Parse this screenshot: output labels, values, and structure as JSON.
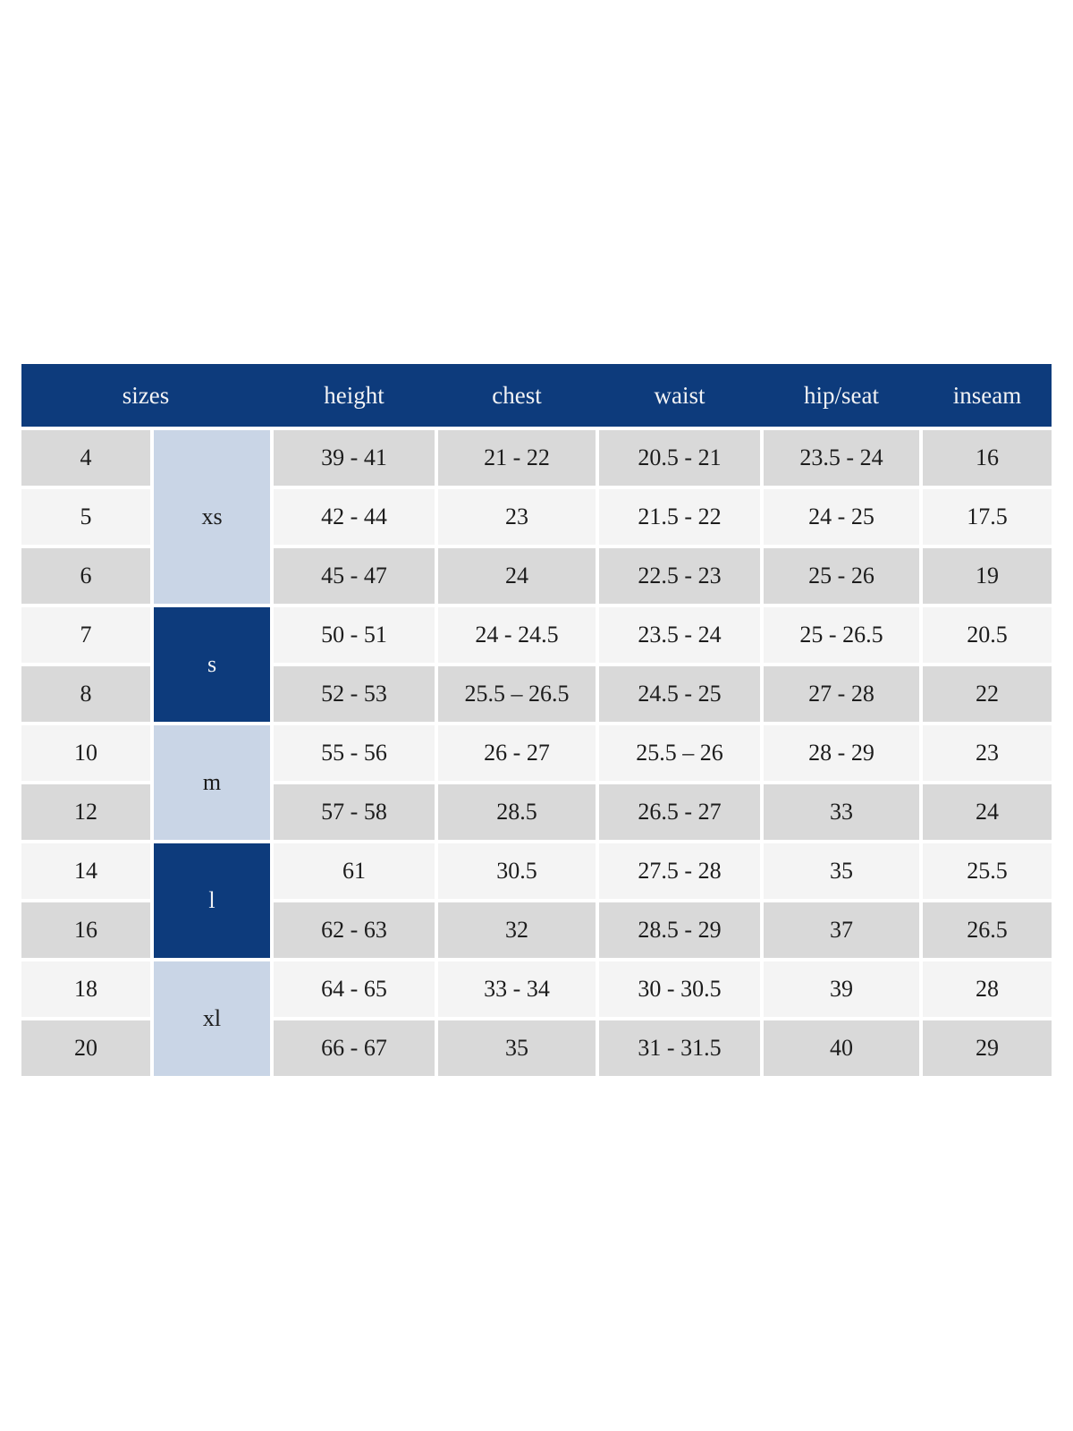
{
  "theme": {
    "header_bg": "#0d3b7c",
    "header_text": "#f2f3f5",
    "row_gray": "#d9d9d9",
    "row_light": "#f4f4f4",
    "group_blue_light": "#c9d5e6",
    "group_blue_dark": "#0d3b7c",
    "cell_text": "#1c1c1c",
    "page_bg": "#ffffff"
  },
  "table": {
    "header": {
      "columns": [
        "sizes",
        "height",
        "chest",
        "waist",
        "hip/seat",
        "inseam"
      ]
    },
    "groups": [
      {
        "label": "xs",
        "style": "light",
        "rows": 3
      },
      {
        "label": "s",
        "style": "dark",
        "rows": 2
      },
      {
        "label": "m",
        "style": "light",
        "rows": 2
      },
      {
        "label": "l",
        "style": "dark",
        "rows": 2
      },
      {
        "label": "xl",
        "style": "light",
        "rows": 2
      }
    ],
    "rows": [
      {
        "size": "4",
        "height": "39 - 41",
        "chest": "21 - 22",
        "waist": "20.5 - 21",
        "hip_seat": "23.5 - 24",
        "inseam": "16"
      },
      {
        "size": "5",
        "height": "42 - 44",
        "chest": "23",
        "waist": "21.5 - 22",
        "hip_seat": "24 - 25",
        "inseam": "17.5"
      },
      {
        "size": "6",
        "height": "45 - 47",
        "chest": "24",
        "waist": "22.5 - 23",
        "hip_seat": "25 - 26",
        "inseam": "19"
      },
      {
        "size": "7",
        "height": "50 - 51",
        "chest": "24 - 24.5",
        "waist": "23.5 - 24",
        "hip_seat": "25 - 26.5",
        "inseam": "20.5"
      },
      {
        "size": "8",
        "height": "52 - 53",
        "chest": "25.5 – 26.5",
        "waist": "24.5 - 25",
        "hip_seat": "27 - 28",
        "inseam": "22"
      },
      {
        "size": "10",
        "height": "55 - 56",
        "chest": "26 - 27",
        "waist": "25.5 – 26",
        "hip_seat": "28 - 29",
        "inseam": "23"
      },
      {
        "size": "12",
        "height": "57 - 58",
        "chest": "28.5",
        "waist": "26.5 - 27",
        "hip_seat": "33",
        "inseam": "24"
      },
      {
        "size": "14",
        "height": "61",
        "chest": "30.5",
        "waist": "27.5 - 28",
        "hip_seat": "35",
        "inseam": "25.5"
      },
      {
        "size": "16",
        "height": "62 - 63",
        "chest": "32",
        "waist": "28.5 - 29",
        "hip_seat": "37",
        "inseam": "26.5"
      },
      {
        "size": "18",
        "height": "64 - 65",
        "chest": "33 - 34",
        "waist": "30 - 30.5",
        "hip_seat": "39",
        "inseam": "28"
      },
      {
        "size": "20",
        "height": "66 - 67",
        "chest": "35",
        "waist": "31 - 31.5",
        "hip_seat": "40",
        "inseam": "29"
      }
    ]
  }
}
